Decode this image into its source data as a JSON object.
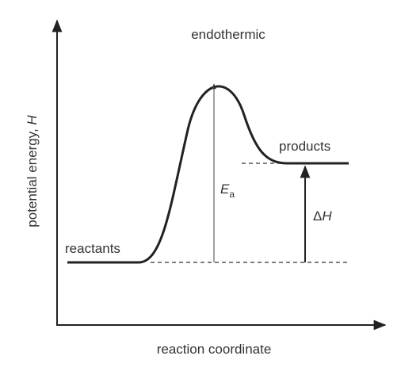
{
  "title": "endothermic",
  "x_axis_label": "reaction coordinate",
  "y_axis_label": {
    "text": "potential energy, ",
    "symbol": "H"
  },
  "reactants_label": "reactants",
  "products_label": "products",
  "activation_energy_label": {
    "symbol": "E",
    "subscript": "a"
  },
  "enthalpy_change_label": {
    "prefix": "Δ",
    "symbol": "H"
  }
}
